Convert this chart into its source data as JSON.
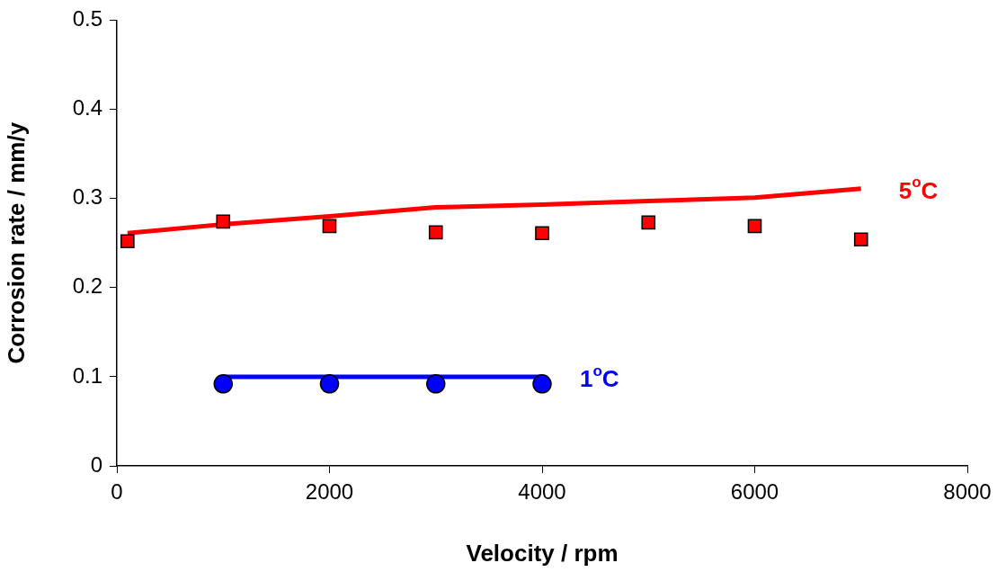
{
  "chart_data": {
    "type": "scatter",
    "xlabel": "Velocity / rpm",
    "ylabel": "Corrosion rate / mm/y",
    "xlim": [
      0,
      8000
    ],
    "xticks": [
      0,
      2000,
      4000,
      6000,
      8000
    ],
    "ylim": [
      0,
      0.5
    ],
    "yticks": [
      0,
      0.1,
      0.2,
      0.3,
      0.4,
      0.5
    ],
    "grid": false,
    "legend": false,
    "series": [
      {
        "type": "line",
        "name": "5$^{o}$C",
        "color": "#ff0000",
        "marker": "none",
        "x": [
          100,
          1000,
          2000,
          3000,
          4000,
          5000,
          6000,
          7000
        ],
        "values": [
          0.261,
          0.271,
          0.28,
          0.29,
          0.293,
          0.297,
          0.301,
          0.311
        ]
      },
      {
        "color": "#ff0000",
        "marker": "square",
        "x": [
          100,
          1000,
          2000,
          3000,
          4000,
          5000,
          6000,
          7000
        ],
        "values": [
          0.252,
          0.274,
          0.269,
          0.262,
          0.261,
          0.273,
          0.269,
          0.254
        ]
      },
      {
        "type": "line",
        "name": "1$^{o}$C",
        "color": "#0000ff",
        "marker": "none",
        "x": [
          1000,
          2000,
          3000,
          4000
        ],
        "values": [
          0.1,
          0.1,
          0.1,
          0.1
        ]
      },
      {
        "color": "#0000ff",
        "marker": "circle",
        "x": [
          1000,
          2000,
          3000,
          4000
        ],
        "values": [
          0.092,
          0.092,
          0.092,
          0.092
        ]
      }
    ]
  }
}
